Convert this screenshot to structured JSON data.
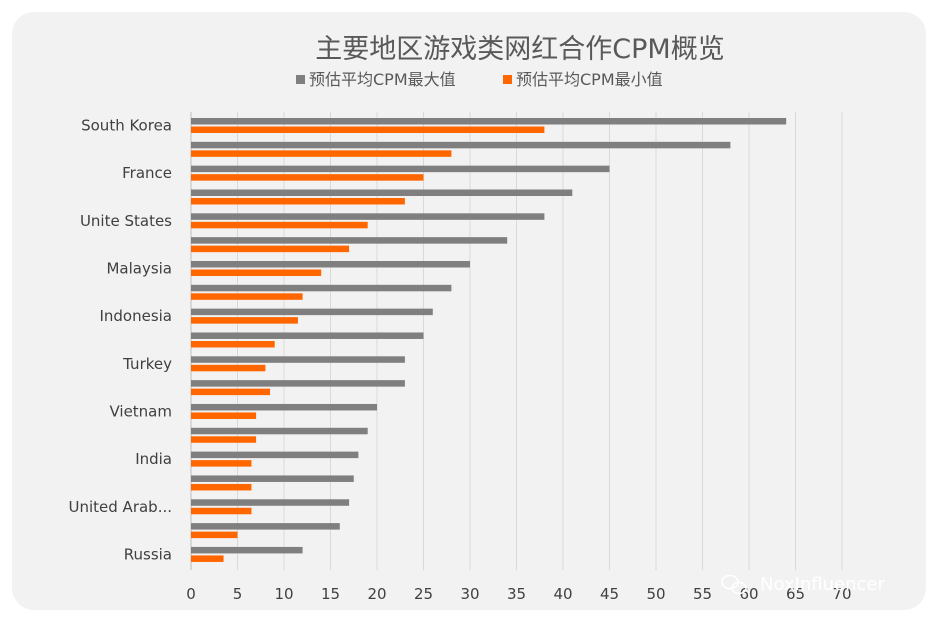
{
  "chart_data": {
    "type": "bar",
    "orientation": "horizontal",
    "title": "主要地区游戏类网红合作CPM概览",
    "categories_labeled": [
      "South Korea",
      "France",
      "Unite States",
      "Malaysia",
      "Indonesia",
      "Turkey",
      "Vietnam",
      "India",
      "United Arab...",
      "Russia"
    ],
    "series": [
      {
        "name": "预估平均CPM最大值",
        "color": "#7f7f7f",
        "values": [
          64,
          58,
          45,
          41,
          38,
          34,
          30,
          28,
          26,
          25,
          23,
          23,
          20,
          19,
          18,
          17.5,
          17,
          16,
          12
        ]
      },
      {
        "name": "预估平均CPM最小值",
        "color": "#ff6600",
        "values": [
          38,
          28,
          25,
          23,
          19,
          17,
          14,
          12,
          11.5,
          9,
          8,
          8.5,
          7,
          7,
          6.5,
          6.5,
          6.5,
          5,
          3.5
        ]
      }
    ],
    "xlim": [
      0,
      70
    ],
    "xticks": [
      0,
      5,
      10,
      15,
      20,
      25,
      30,
      35,
      40,
      45,
      50,
      55,
      60,
      65,
      70
    ],
    "grid": true,
    "legend_position": "top"
  },
  "watermark": {
    "text": "NoxInfluencer",
    "icon": "wechat-icon"
  }
}
